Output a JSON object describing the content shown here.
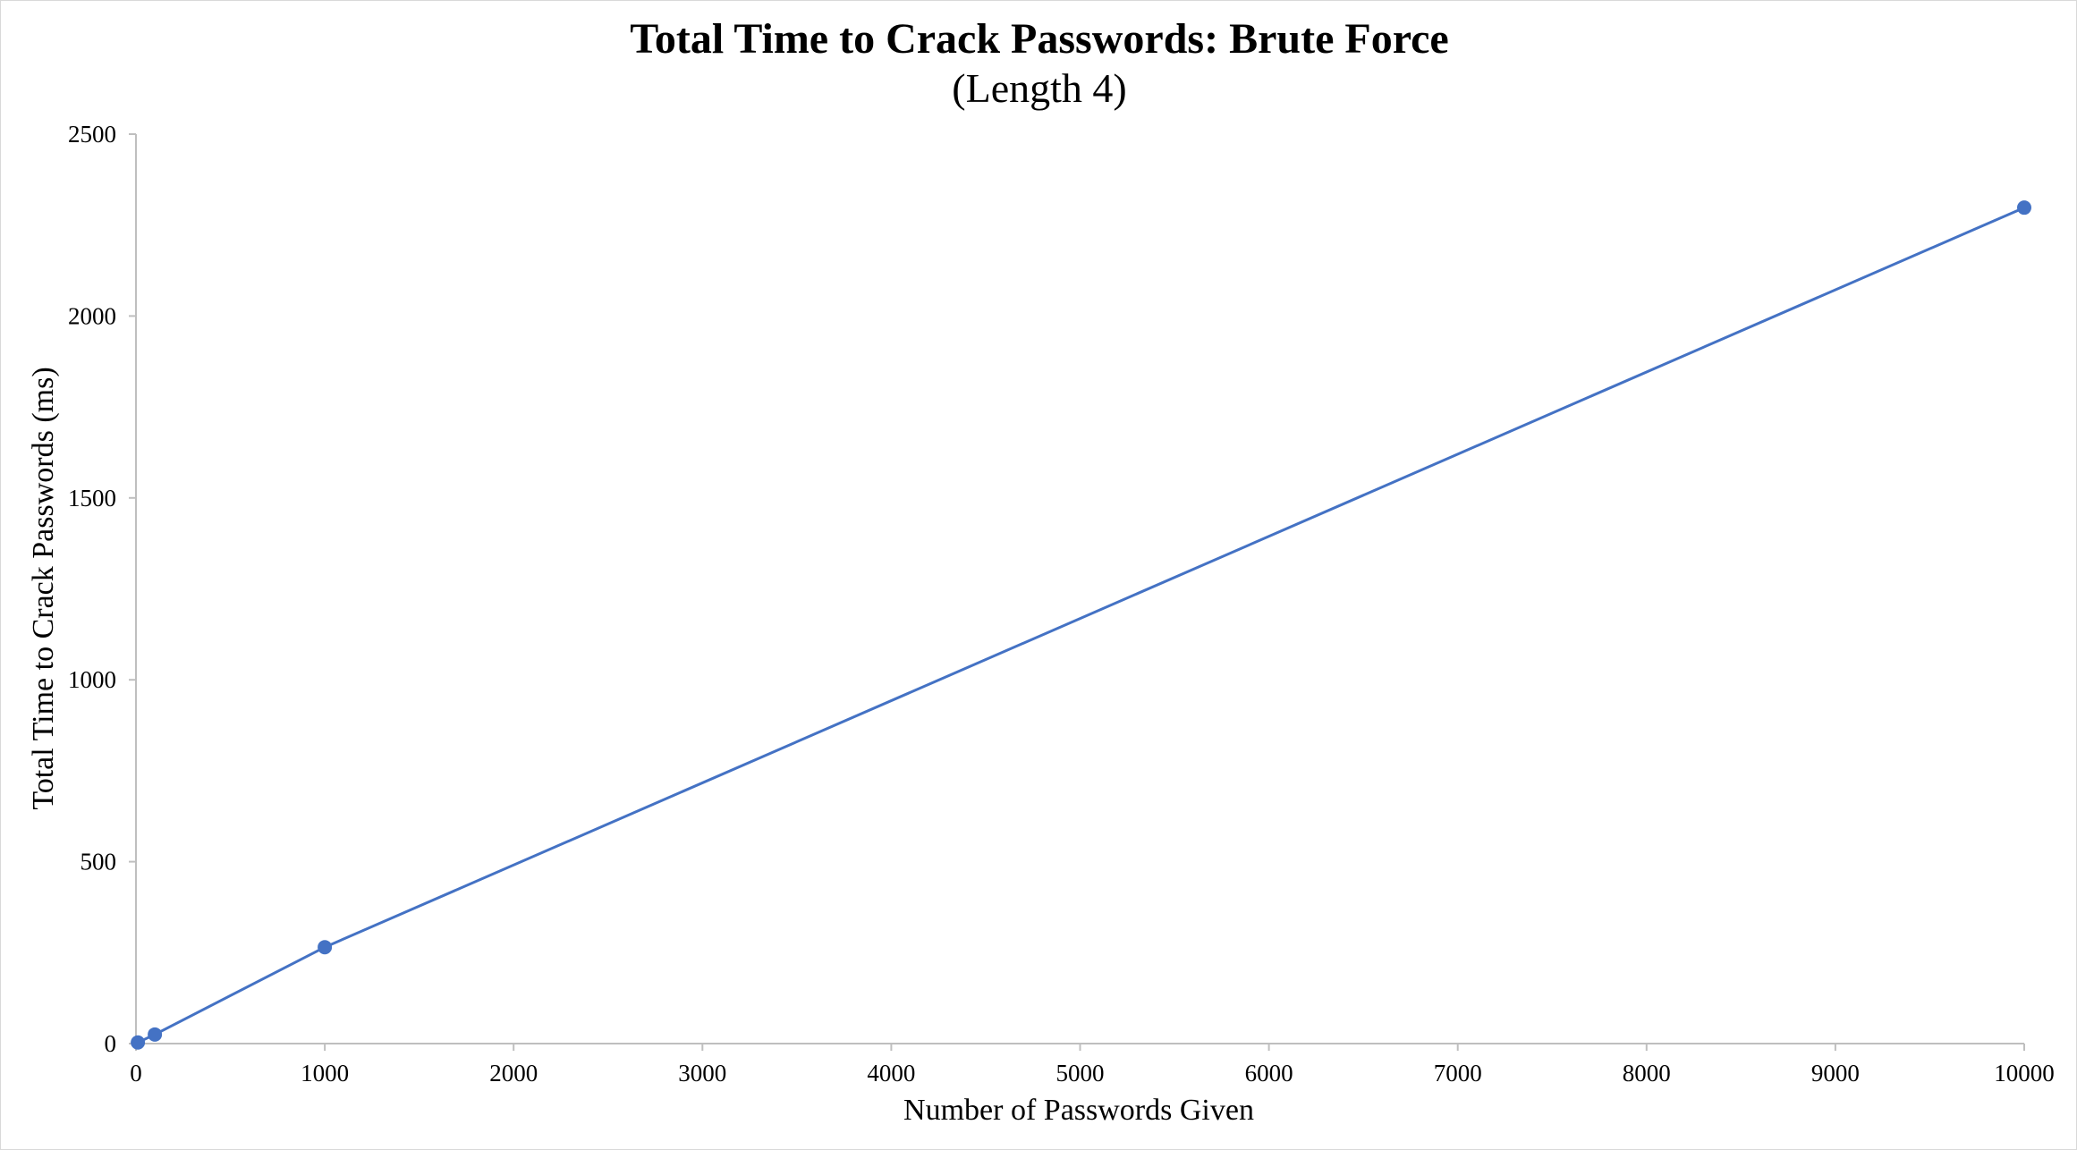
{
  "chart_data": {
    "type": "line",
    "title": "Total Time to Crack Passwords: Brute Force",
    "subtitle": "(Length 4)",
    "xlabel": "Number of Passwords Given",
    "ylabel": "Total Time to Crack Passwords (ms)",
    "xlim": [
      0,
      10000
    ],
    "ylim": [
      0,
      2500
    ],
    "xticks": [
      0,
      1000,
      2000,
      3000,
      4000,
      5000,
      6000,
      7000,
      8000,
      9000,
      10000
    ],
    "yticks": [
      0,
      500,
      1000,
      1500,
      2000,
      2500
    ],
    "grid": false,
    "legend": "none",
    "series": [
      {
        "color": "#4472c4",
        "points": [
          {
            "x": 10,
            "y": 3
          },
          {
            "x": 100,
            "y": 25
          },
          {
            "x": 1000,
            "y": 265
          },
          {
            "x": 10000,
            "y": 2298
          }
        ]
      }
    ]
  }
}
